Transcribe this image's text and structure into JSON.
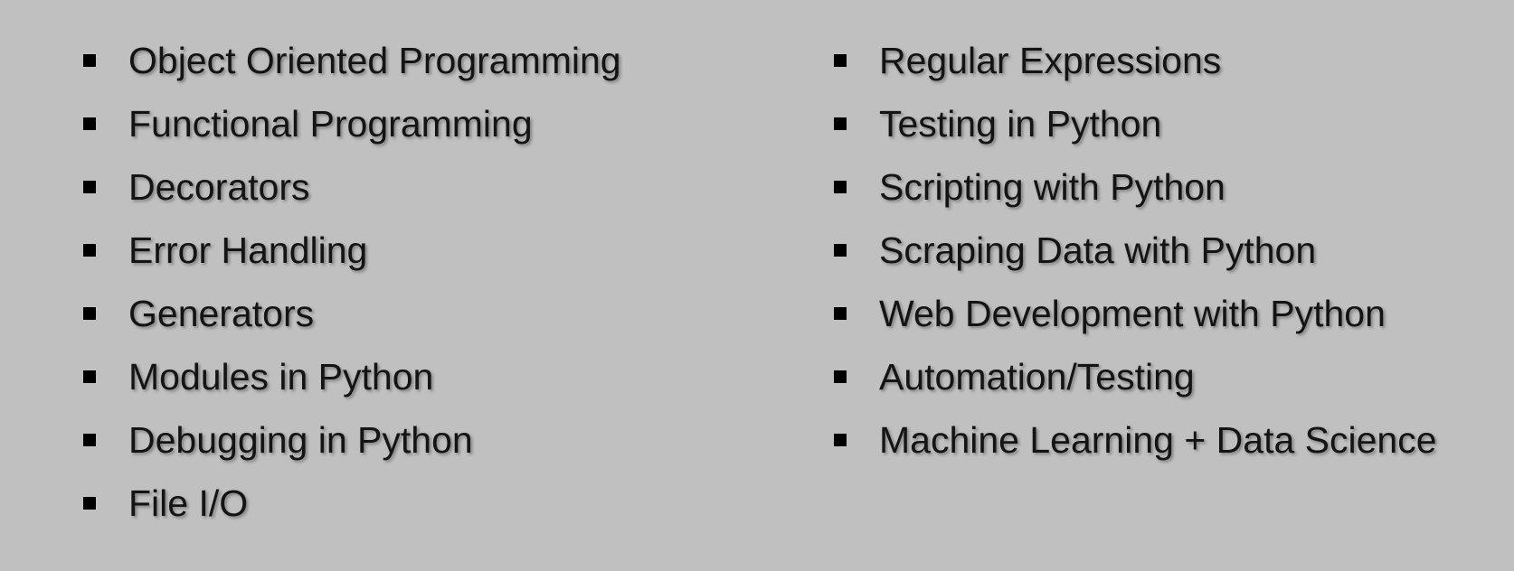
{
  "left_column": {
    "items": [
      {
        "label": "Object Oriented Programming"
      },
      {
        "label": "Functional Programming"
      },
      {
        "label": "Decorators"
      },
      {
        "label": "Error Handling"
      },
      {
        "label": "Generators"
      },
      {
        "label": "Modules in Python"
      },
      {
        "label": "Debugging in Python"
      },
      {
        "label": "File I/O"
      }
    ]
  },
  "right_column": {
    "items": [
      {
        "label": "Regular Expressions"
      },
      {
        "label": "Testing in Python"
      },
      {
        "label": "Scripting with Python"
      },
      {
        "label": "Scraping Data with Python"
      },
      {
        "label": "Web Development with Python"
      },
      {
        "label": "Automation/Testing"
      },
      {
        "label": "Machine Learning + Data Science"
      }
    ]
  },
  "style": {
    "background_color": "#c0c0c0",
    "text_color": "#141414",
    "bullet_color": "#000000",
    "bullet_icon": "square-bullet-icon"
  }
}
